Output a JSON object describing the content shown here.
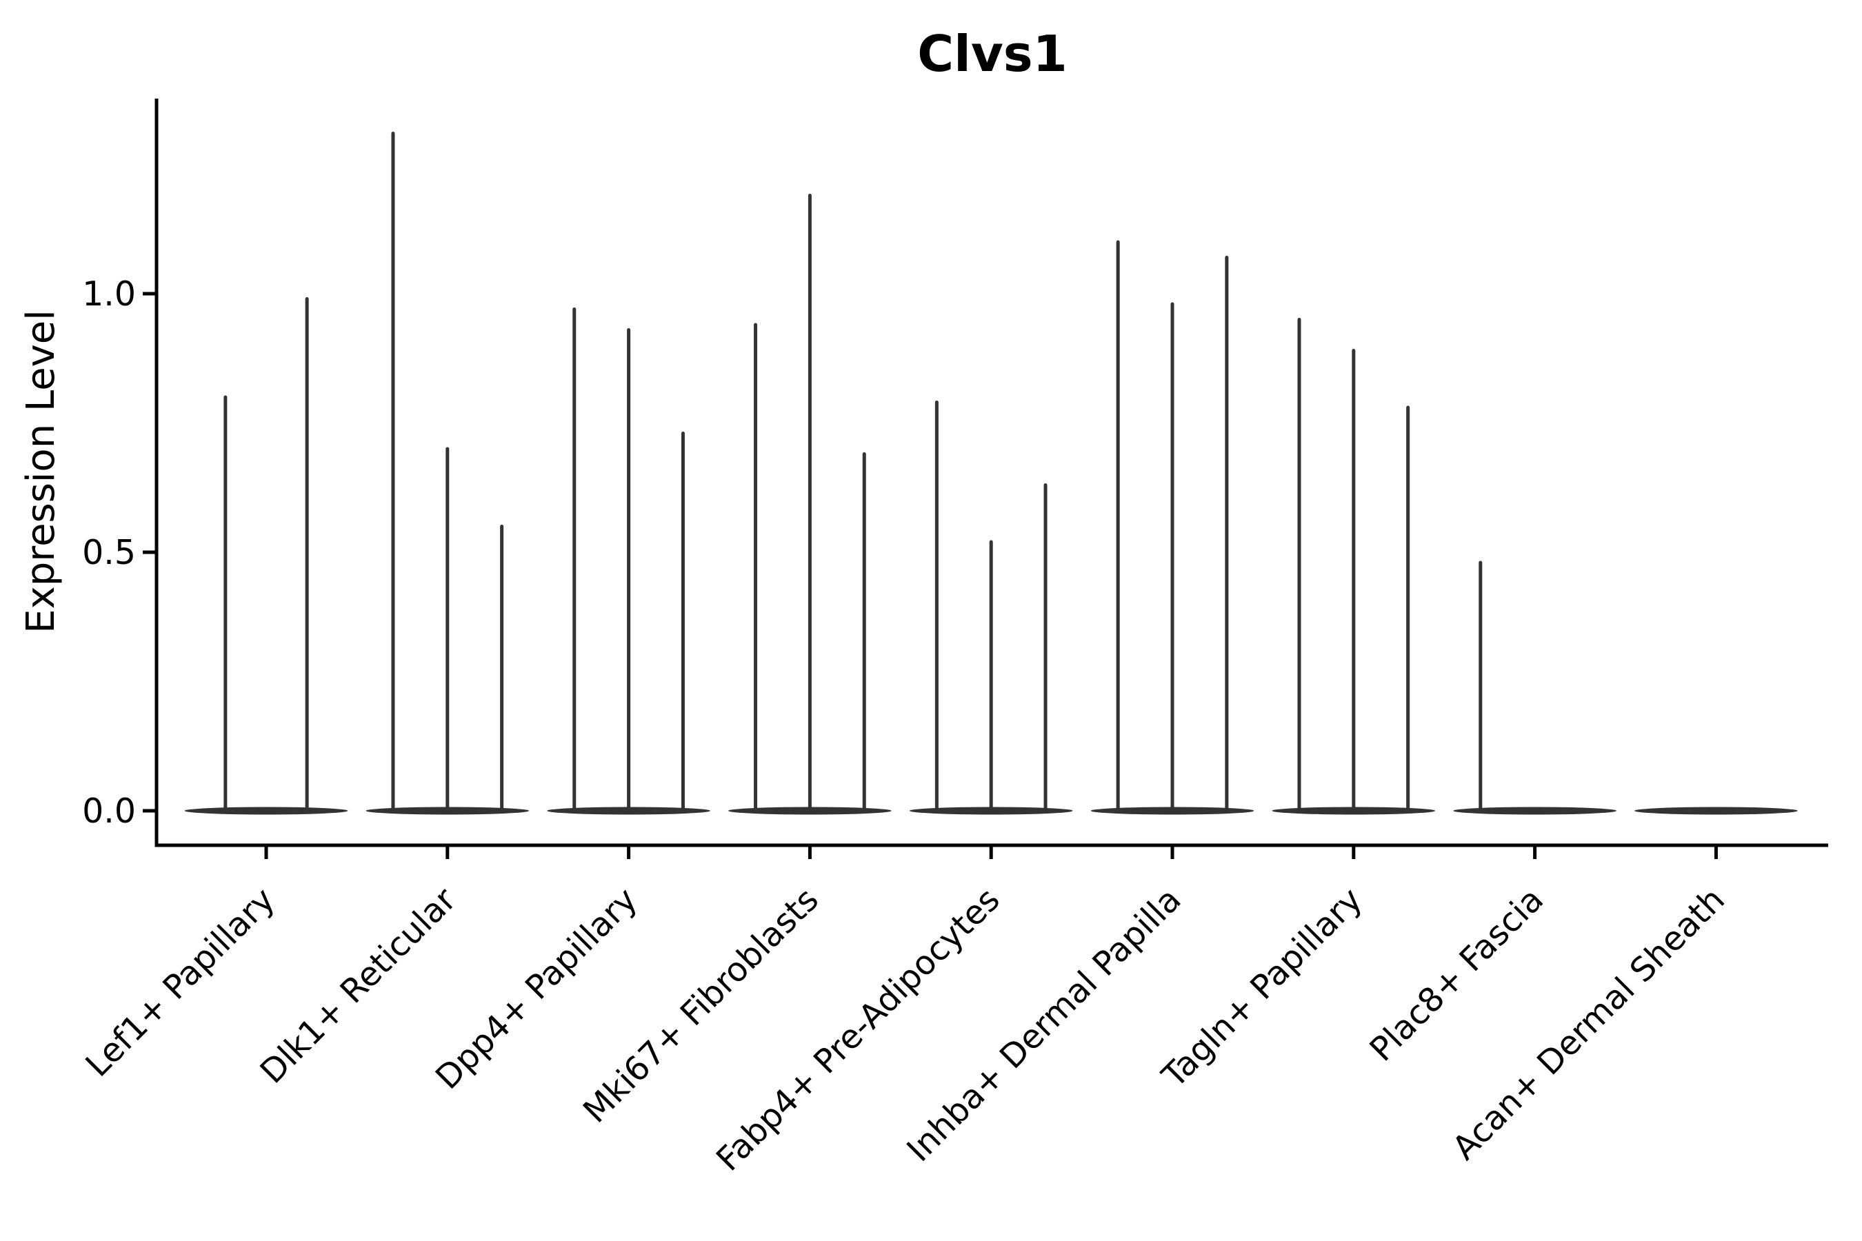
{
  "title": "Clvs1",
  "chart_data": {
    "type": "violin",
    "title": "Clvs1",
    "xlabel": "",
    "ylabel": "Expression Level",
    "yticks": [
      "0.0",
      "0.5",
      "1.0"
    ],
    "ytick_values": [
      0.0,
      0.5,
      1.0
    ],
    "ylim": [
      -0.067,
      1.377
    ],
    "grid": false,
    "legend_position": "none",
    "background_color": "#ffffff",
    "categories": [
      "Lef1+ Papillary",
      "Dlk1+ Reticular",
      "Dpp4+ Papillary",
      "Mki67+ Fibroblasts",
      "Fabp4+ Pre-Adipocytes",
      "Inhba+ Dermal Papilla",
      "Tagln+ Papillary",
      "Plac8+ Fascia",
      "Acan+ Dermal Sheath"
    ],
    "violin_note": "Each category holds 2-3 thin sub-violins: a flat disc at 0 expression with a hair-thin spike reaching the max value; 0 means a completely flat violin with no spike.",
    "violin_max_values": [
      [
        0.8,
        0.99
      ],
      [
        1.31,
        0.7,
        0.55
      ],
      [
        0.97,
        0.93,
        0.73
      ],
      [
        0.94,
        1.19,
        0.69
      ],
      [
        0.79,
        0.52,
        0.63
      ],
      [
        1.1,
        0.98,
        1.07
      ],
      [
        0.95,
        0.89,
        0.78
      ],
      [
        0.48,
        0,
        0
      ],
      [
        0,
        0,
        0
      ]
    ],
    "colors": {
      "violin": "#333333",
      "axis": "#000000",
      "text": "#000000"
    }
  }
}
